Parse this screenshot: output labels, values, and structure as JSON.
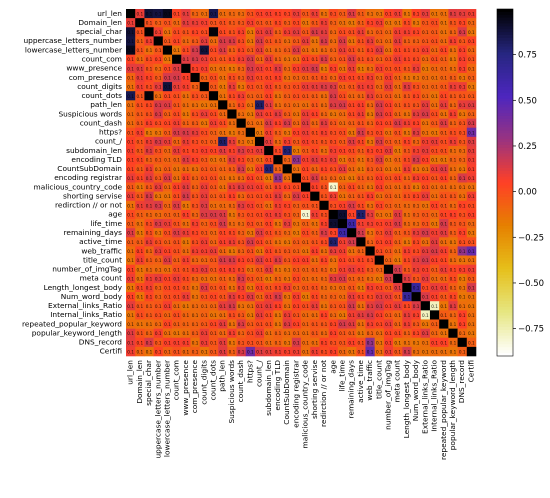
{
  "chart_data": {
    "type": "heatmap",
    "title": "",
    "row_labels": [
      "url_len",
      "Domain_len",
      "special_char",
      "uppercase_letters_number",
      "lowercase_letters_number",
      "count_com",
      "www_presence",
      "com_presence",
      "count_digits",
      "count_dots",
      "path_len",
      "Suspicious words",
      "count_dash",
      "https?",
      "count_/",
      "subdomain_len",
      "encoding TLD",
      "CountSubDomain",
      "encoding registrar",
      "malicious_country_code",
      "shorting servise",
      "redirction // or not",
      "age",
      "life_time",
      "remaining_days",
      "active_time",
      "web_traffic",
      "title_count",
      "number_of_imgTag",
      "meta count",
      "Length_longest_body",
      "Num_word_body",
      "External_links_Ratio",
      "Internal_links_Ratio",
      "repeated_popular_keyword",
      "popular_keyword_length",
      "DNS_record",
      "Certifi"
    ],
    "column_labels": [
      "url_len",
      "Domain_len",
      "special_char",
      "uppercase_letters_number",
      "lowercase_letters_number",
      "count_com",
      "www_presence",
      "com_presence",
      "count_digits",
      "count_dots",
      "path_len",
      "Suspicious words",
      "count_dash",
      "https?",
      "count_/",
      "subdomain_len",
      "encoding TLD",
      "CountSubDomain",
      "encoding registrar",
      "malicious_country_code",
      "shorting servise",
      "redirction // or not",
      "age",
      "life_time",
      "remaining_days",
      "active_time",
      "web_traffic",
      "title_count",
      "number_of_imgTag",
      "meta count",
      "Length_longest_body",
      "Num_word_body",
      "External_links_Ratio",
      "Internal_links_Ratio",
      "repeated_popular_keyword",
      "popular_keyword_length",
      "DNS_record",
      "Certifi"
    ],
    "diagonal_value": 1.0,
    "annotated_cells": true,
    "colorscale": "CMRmap",
    "colorbar_range": [
      -0.9,
      1.0
    ],
    "colorbar_ticks": [
      -0.75,
      -0.5,
      -0.25,
      0.0,
      0.25,
      0.5,
      0.75
    ],
    "colorbar_tick_labels": [
      "−0.75",
      "−0.50",
      "−0.25",
      "0.00",
      "0.25",
      "0.50",
      "0.75"
    ],
    "highlighted_cells": [
      {
        "row": "url_len",
        "col": "special_char",
        "value": 0.9
      },
      {
        "row": "url_len",
        "col": "uppercase_letters_number",
        "value": 0.88
      },
      {
        "row": "url_len",
        "col": "lowercase_letters_number",
        "value": 0.95
      },
      {
        "row": "url_len",
        "col": "count_dots",
        "value": 0.85
      },
      {
        "row": "special_char",
        "col": "count_dots",
        "value": 0.98
      },
      {
        "row": "lowercase_letters_number",
        "col": "count_digits",
        "value": 0.89
      },
      {
        "row": "count_/",
        "col": "path_len",
        "value": 0.81
      },
      {
        "row": "subdomain_len",
        "col": "CountSubDomain",
        "value": 0.78
      },
      {
        "row": "CountSubDomain",
        "col": "subdomain_len",
        "value": 0.78
      },
      {
        "row": "life_time",
        "col": "age",
        "value": 0.91
      },
      {
        "row": "active_time",
        "col": "age",
        "value": 0.8
      },
      {
        "row": "remaining_days",
        "col": "life_time",
        "value": 0.62
      },
      {
        "row": "Num_word_body",
        "col": "Length_longest_body",
        "value": 0.66
      },
      {
        "row": "Internal_links_Ratio",
        "col": "External_links_Ratio",
        "value": -0.78
      },
      {
        "row": "External_links_Ratio",
        "col": "Internal_links_Ratio",
        "value": -0.78
      },
      {
        "row": "https?",
        "col": "Certifi",
        "value": 0.42
      },
      {
        "row": "Certifi",
        "col": "https?",
        "value": 0.42
      },
      {
        "row": "age",
        "col": "malicious_country_code",
        "value": -0.81
      },
      {
        "row": "encoding registrar",
        "col": "encoding TLD",
        "value": 0.32
      },
      {
        "row": "web_traffic",
        "col": "Certifi",
        "value": 0.45
      },
      {
        "row": "DNS_record",
        "col": "web_traffic",
        "value": 0.31
      }
    ],
    "annotation_text": "0.1"
  }
}
